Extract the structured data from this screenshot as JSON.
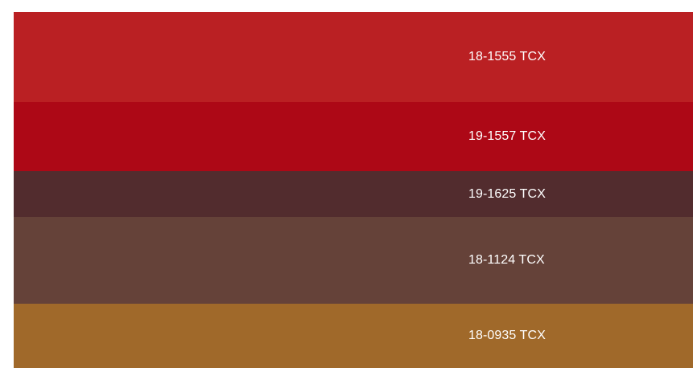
{
  "swatches": [
    {
      "code": "18-1555 TCX",
      "color": "#ba2023"
    },
    {
      "code": "19-1557 TCX",
      "color": "#ad0816"
    },
    {
      "code": "19-1625 TCX",
      "color": "#522c2e"
    },
    {
      "code": "18-1124 TCX",
      "color": "#654239"
    },
    {
      "code": "18-0935 TCX",
      "color": "#a0692a"
    }
  ]
}
